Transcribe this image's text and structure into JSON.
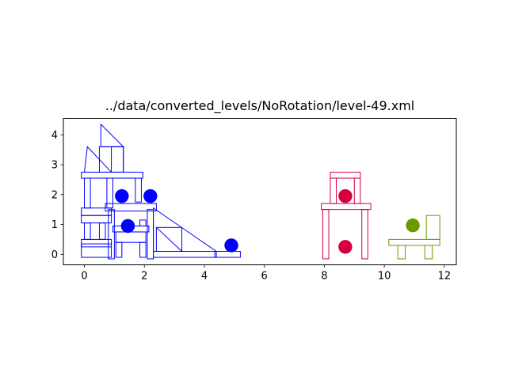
{
  "chart_data": {
    "type": "scatter",
    "title": "../data/converted_levels/NoRotation/level-49.xml",
    "xlabel": "",
    "ylabel": "",
    "xlim": [
      -0.7,
      12.4
    ],
    "ylim": [
      -0.35,
      4.55
    ],
    "xticks": [
      0,
      2,
      4,
      6,
      8,
      10,
      12
    ],
    "yticks": [
      0,
      1,
      2,
      3,
      4
    ],
    "xtick_labels": [
      "0",
      "2",
      "4",
      "6",
      "8",
      "10",
      "12"
    ],
    "ytick_labels": [
      "0",
      "1",
      "2",
      "3",
      "4"
    ],
    "grid": false,
    "colors": {
      "structure": "#0000ff",
      "target": "#d40040",
      "bird": "#6b9a00"
    },
    "series": [
      {
        "color": "#0000ff",
        "circles": [
          {
            "x": 1.25,
            "y": 1.95,
            "r": 0.23
          },
          {
            "x": 2.2,
            "y": 1.95,
            "r": 0.23
          },
          {
            "x": 1.45,
            "y": 0.95,
            "r": 0.23
          },
          {
            "x": 4.9,
            "y": 0.3,
            "r": 0.23
          }
        ],
        "rects": [
          [
            -0.1,
            -0.1,
            0.9,
            0.35
          ],
          [
            -0.1,
            0.25,
            0.9,
            0.5
          ],
          [
            0.0,
            0.5,
            0.2,
            1.05
          ],
          [
            0.5,
            0.5,
            0.7,
            1.05
          ],
          [
            -0.1,
            1.05,
            0.9,
            1.3
          ],
          [
            -0.1,
            1.3,
            0.9,
            1.55
          ],
          [
            0.0,
            1.55,
            0.2,
            2.55
          ],
          [
            -0.1,
            2.55,
            1.95,
            2.75
          ],
          [
            0.75,
            1.55,
            0.95,
            2.55
          ],
          [
            0.8,
            -0.15,
            1.0,
            1.5
          ],
          [
            0.7,
            1.45,
            2.4,
            1.7
          ],
          [
            1.05,
            -0.1,
            1.25,
            0.4
          ],
          [
            1.05,
            0.4,
            2.05,
            0.75
          ],
          [
            0.95,
            0.75,
            2.15,
            0.95
          ],
          [
            1.85,
            -0.1,
            2.05,
            0.4
          ],
          [
            1.85,
            0.95,
            2.05,
            1.15
          ],
          [
            2.1,
            -0.15,
            2.3,
            1.5
          ],
          [
            1.7,
            1.75,
            1.9,
            2.55
          ],
          [
            2.3,
            -0.1,
            4.4,
            0.1
          ],
          [
            4.35,
            -0.1,
            5.2,
            0.1
          ],
          [
            2.4,
            0.1,
            3.25,
            0.9
          ],
          [
            0.5,
            2.75,
            1.3,
            3.6
          ],
          [
            0.9,
            2.75,
            1.3,
            3.6
          ]
        ],
        "polygons": [
          [
            [
              0.0,
              2.75
            ],
            [
              0.1,
              3.6
            ],
            [
              0.9,
              2.75
            ]
          ],
          [
            [
              0.55,
              3.6
            ],
            [
              0.55,
              4.35
            ],
            [
              1.3,
              3.6
            ]
          ],
          [
            [
              2.3,
              1.55
            ],
            [
              4.4,
              0.1
            ],
            [
              2.3,
              0.1
            ]
          ],
          [
            [
              2.4,
              0.9
            ],
            [
              3.25,
              0.1
            ]
          ]
        ]
      },
      {
        "color": "#d40040",
        "circles": [
          {
            "x": 8.7,
            "y": 1.95,
            "r": 0.23
          },
          {
            "x": 8.7,
            "y": 0.25,
            "r": 0.23
          }
        ],
        "rects": [
          [
            7.95,
            -0.15,
            8.15,
            1.5
          ],
          [
            9.25,
            -0.15,
            9.45,
            1.5
          ],
          [
            7.9,
            1.5,
            9.55,
            1.7
          ],
          [
            8.2,
            1.7,
            8.4,
            2.55
          ],
          [
            9.0,
            1.7,
            9.2,
            2.55
          ],
          [
            8.2,
            2.55,
            9.2,
            2.75
          ]
        ],
        "polygons": []
      },
      {
        "color": "#6b9a00",
        "circles": [
          {
            "x": 10.95,
            "y": 0.97,
            "r": 0.23
          }
        ],
        "rects": [
          [
            10.45,
            -0.15,
            10.7,
            0.3
          ],
          [
            11.35,
            -0.15,
            11.6,
            0.3
          ],
          [
            10.15,
            0.3,
            11.85,
            0.5
          ],
          [
            11.4,
            0.5,
            11.85,
            1.3
          ]
        ],
        "polygons": []
      }
    ]
  }
}
